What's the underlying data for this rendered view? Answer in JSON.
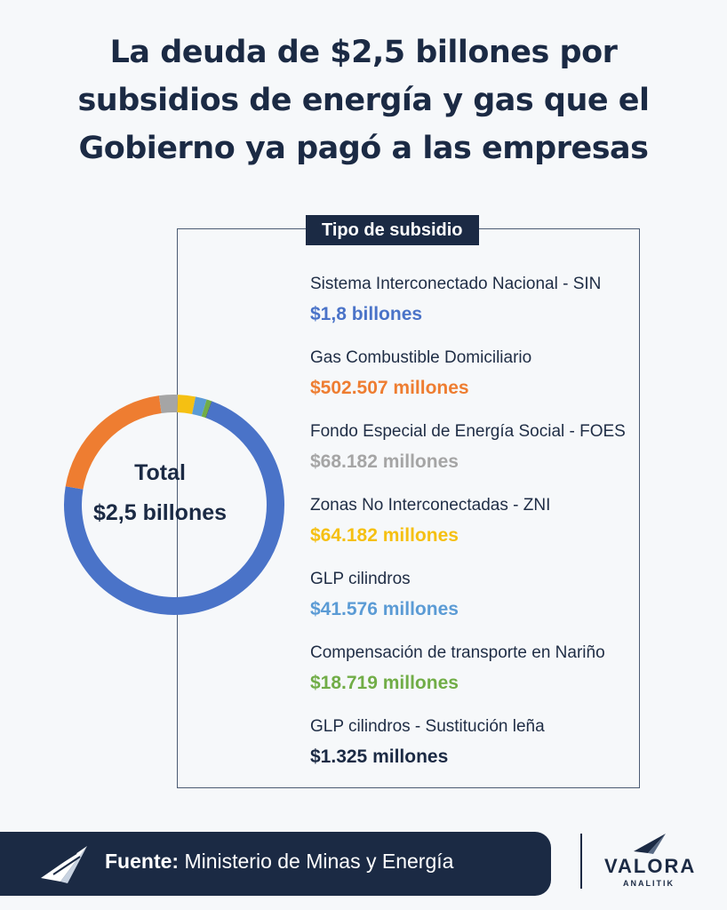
{
  "title": {
    "line1": "La deuda de $2,5 billones por",
    "line2": "subsidios de energía y gas que el",
    "line3": "Gobierno ya pagó a las empresas"
  },
  "legend_title": "Tipo de subsidio",
  "center": {
    "line1": "Total",
    "line2": "$2,5 billones"
  },
  "items": [
    {
      "label": "Sistema Interconectado Nacional - SIN",
      "value": "$1,8 billones",
      "color": "#4a73c8"
    },
    {
      "label": "Gas Combustible Domiciliario",
      "value": "$502.507 millones",
      "color": "#ee7d31"
    },
    {
      "label": "Fondo Especial de Energía Social - FOES",
      "value": "$68.182 millones",
      "color": "#a5a5a5"
    },
    {
      "label": "Zonas No Interconectadas - ZNI",
      "value": "$64.182 millones",
      "color": "#f5c012"
    },
    {
      "label": "GLP cilindros",
      "value": "$41.576 millones",
      "color": "#5b9bd5"
    },
    {
      "label": "Compensación de transporte en Nariño",
      "value": "$18.719 millones",
      "color": "#71ad47"
    },
    {
      "label": "GLP cilindros - Sustitución leña",
      "value": "$1.325 millones",
      "color": "#1b2a44"
    }
  ],
  "chart_data": {
    "type": "pie",
    "categories": [
      "Sistema Interconectado Nacional - SIN",
      "Gas Combustible Domiciliario",
      "Fondo Especial de Energía Social - FOES",
      "Zonas No Interconectadas - ZNI",
      "GLP cilindros",
      "Compensación de transporte en Nariño",
      "GLP cilindros - Sustitución leña"
    ],
    "values": [
      1800000,
      502507,
      68182,
      64182,
      41576,
      18719,
      1325
    ],
    "unit": "millones",
    "colors": [
      "#4a73c8",
      "#ee7d31",
      "#a5a5a5",
      "#f5c012",
      "#5b9bd5",
      "#71ad47",
      "#1b2a44"
    ]
  },
  "footer": {
    "label": "Fuente:",
    "text": "Ministerio de Minas y Energía"
  },
  "brand": {
    "name": "VALORA",
    "sub": "ANALITIK"
  }
}
